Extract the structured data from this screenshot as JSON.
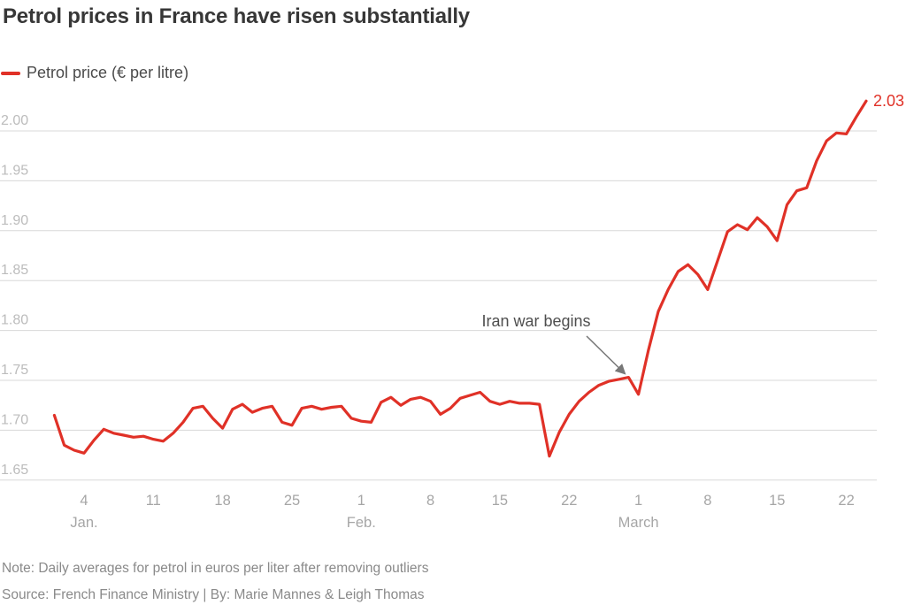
{
  "page": {
    "title": "Petrol prices in France have risen substantially"
  },
  "legend": {
    "label": "Petrol price (€ per litre)"
  },
  "footer": {
    "note": "Note: Daily averages for petrol in euros per liter after removing outliers",
    "source": "Source: French Finance Ministry | By: Marie Mannes & Leigh Thomas"
  },
  "colors": {
    "line": "#e03127",
    "grid": "#d8d8d8",
    "y_label": "#bcbcbc",
    "x_label": "#a6a6a6",
    "annotation_text": "#4f4f4f",
    "arrow": "#787878",
    "title": "#373737",
    "legend_text": "#4b4b4b",
    "footer_text": "#8a8a8a"
  },
  "chart_data": {
    "type": "line",
    "title": "Petrol prices in France have risen substantially",
    "ylabel": "Petrol price (€ per litre)",
    "grid": "horizontal",
    "legend_position": "top-left",
    "ylim": [
      1.63,
      2.05
    ],
    "y_ticks": [
      1.65,
      1.7,
      1.75,
      1.8,
      1.85,
      1.9,
      1.95,
      2.0
    ],
    "x_ticks": [
      {
        "i": 3,
        "label": "4"
      },
      {
        "i": 10,
        "label": "11"
      },
      {
        "i": 17,
        "label": "18"
      },
      {
        "i": 24,
        "label": "25"
      },
      {
        "i": 31,
        "label": "1"
      },
      {
        "i": 38,
        "label": "8"
      },
      {
        "i": 45,
        "label": "15"
      },
      {
        "i": 52,
        "label": "22"
      },
      {
        "i": 59,
        "label": "1"
      },
      {
        "i": 66,
        "label": "8"
      },
      {
        "i": 73,
        "label": "15"
      },
      {
        "i": 80,
        "label": "22"
      }
    ],
    "month_labels": [
      {
        "i": 3,
        "label": "Jan."
      },
      {
        "i": 31,
        "label": "Feb."
      },
      {
        "i": 59,
        "label": "March"
      }
    ],
    "annotation": {
      "text": "Iran war begins",
      "x": "Feb 28",
      "index": 58
    },
    "end_value_label": "2.03",
    "x": [
      "Jan 1",
      "Jan 2",
      "Jan 3",
      "Jan 4",
      "Jan 5",
      "Jan 6",
      "Jan 7",
      "Jan 8",
      "Jan 9",
      "Jan 10",
      "Jan 11",
      "Jan 12",
      "Jan 13",
      "Jan 14",
      "Jan 15",
      "Jan 16",
      "Jan 17",
      "Jan 18",
      "Jan 19",
      "Jan 20",
      "Jan 21",
      "Jan 22",
      "Jan 23",
      "Jan 24",
      "Jan 25",
      "Jan 26",
      "Jan 27",
      "Jan 28",
      "Jan 29",
      "Jan 30",
      "Jan 31",
      "Feb 1",
      "Feb 2",
      "Feb 3",
      "Feb 4",
      "Feb 5",
      "Feb 6",
      "Feb 7",
      "Feb 8",
      "Feb 9",
      "Feb 10",
      "Feb 11",
      "Feb 12",
      "Feb 13",
      "Feb 14",
      "Feb 15",
      "Feb 16",
      "Feb 17",
      "Feb 18",
      "Feb 19",
      "Feb 20",
      "Feb 21",
      "Feb 22",
      "Feb 23",
      "Feb 24",
      "Feb 25",
      "Feb 26",
      "Feb 27",
      "Feb 28",
      "Mar 1",
      "Mar 2",
      "Mar 3",
      "Mar 4",
      "Mar 5",
      "Mar 6",
      "Mar 7",
      "Mar 8",
      "Mar 9",
      "Mar 10",
      "Mar 11",
      "Mar 12",
      "Mar 13",
      "Mar 14",
      "Mar 15",
      "Mar 16",
      "Mar 17",
      "Mar 18",
      "Mar 19",
      "Mar 20",
      "Mar 21",
      "Mar 22",
      "Mar 23",
      "Mar 24"
    ],
    "series": [
      {
        "name": "Petrol price (€ per litre)",
        "values": [
          1.715,
          1.685,
          1.68,
          1.677,
          1.69,
          1.701,
          1.697,
          1.695,
          1.693,
          1.694,
          1.691,
          1.689,
          1.697,
          1.708,
          1.722,
          1.724,
          1.712,
          1.702,
          1.721,
          1.726,
          1.718,
          1.722,
          1.724,
          1.708,
          1.705,
          1.722,
          1.724,
          1.721,
          1.723,
          1.724,
          1.712,
          1.709,
          1.708,
          1.728,
          1.733,
          1.725,
          1.731,
          1.733,
          1.729,
          1.716,
          1.722,
          1.732,
          1.735,
          1.738,
          1.729,
          1.726,
          1.729,
          1.727,
          1.727,
          1.726,
          1.674,
          1.698,
          1.716,
          1.729,
          1.738,
          1.745,
          1.749,
          1.751,
          1.753,
          1.736,
          1.78,
          1.819,
          1.841,
          1.859,
          1.866,
          1.856,
          1.841,
          1.87,
          1.899,
          1.906,
          1.901,
          1.913,
          1.904,
          1.89,
          1.926,
          1.94,
          1.943,
          1.97,
          1.99,
          1.998,
          1.997,
          2.014,
          2.03
        ]
      }
    ]
  }
}
